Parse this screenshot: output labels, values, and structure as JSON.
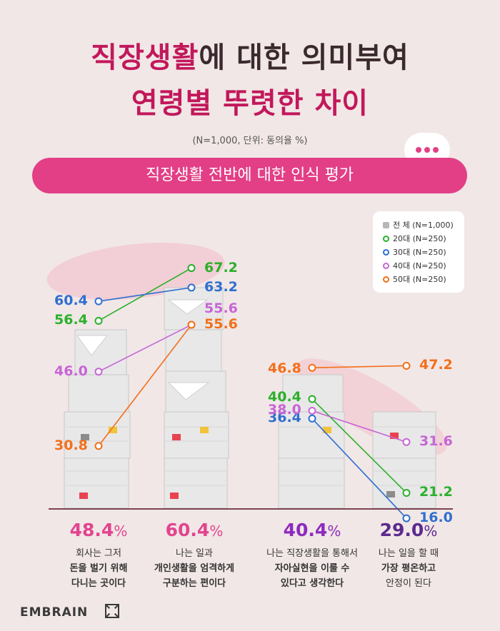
{
  "title": {
    "line1_highlight": "직장생활",
    "line1_rest": "에 대한 의미부여",
    "line2": "연령별 뚜렷한 차이"
  },
  "note": "(N=1,000, 단위: 동의율 %)",
  "banner": "직장생활 전반에 대한 인식 평가",
  "legend": [
    {
      "label": "전 체 (N=1,000)",
      "color": "#b7b7b7"
    },
    {
      "label": "20대 (N=250)",
      "color": "#2bb02b"
    },
    {
      "label": "30대 (N=250)",
      "color": "#2f6fd0"
    },
    {
      "label": "40대 (N=250)",
      "color": "#c865d6"
    },
    {
      "label": "50대 (N=250)",
      "color": "#f36f1a"
    }
  ],
  "chart_data": {
    "type": "line",
    "categories": [
      "회사는 그저 돈을 벌기 위해 다니는 곳이다",
      "나는 일과 개인생활을 엄격하게 구분하는 편이다",
      "나는 직장생활을 통해서 자아실현을 이룰 수 있다고 생각한다",
      "나는 일을 할 때 가장 평온하고 안정이 된다"
    ],
    "totals": [
      48.4,
      60.4,
      40.4,
      29.0
    ],
    "series": [
      {
        "name": "20대 (N=250)",
        "color": "#2bb02b",
        "values": [
          56.4,
          67.2,
          40.4,
          21.2
        ]
      },
      {
        "name": "30대 (N=250)",
        "color": "#2f6fd0",
        "values": [
          60.4,
          63.2,
          36.4,
          16.0
        ]
      },
      {
        "name": "40대 (N=250)",
        "color": "#c865d6",
        "values": [
          46.0,
          55.6,
          38.0,
          31.6
        ]
      },
      {
        "name": "50대 (N=250)",
        "color": "#f36f1a",
        "values": [
          30.8,
          55.6,
          46.8,
          47.2
        ]
      }
    ],
    "value_labels": [
      [
        "56.4",
        "67.2",
        "40.4",
        "21.2"
      ],
      [
        "60.4",
        "63.2",
        "36.4",
        "16.0"
      ],
      [
        "46.0",
        "55.6",
        "38.0",
        "31.6"
      ],
      [
        "30.8",
        "55.6",
        "46.8",
        "47.2"
      ]
    ]
  },
  "bottom": [
    {
      "pct": "48.4",
      "unit": "%",
      "color": "#e2448f",
      "lines": [
        "회사는 그저",
        "돈을 벌기 위해",
        "다니는 곳이다"
      ],
      "bold_lines": [
        1,
        2
      ]
    },
    {
      "pct": "60.4",
      "unit": "%",
      "color": "#e2448f",
      "lines": [
        "나는 일과",
        "개인생활을 엄격하게",
        "구분하는 편이다"
      ],
      "bold_lines": [
        1,
        2
      ]
    },
    {
      "pct": "40.4",
      "unit": "%",
      "color": "#8e2bbf",
      "lines": [
        "나는 직장생활을 통해서",
        "자아실현을 이룰 수",
        "있다고 생각한다"
      ],
      "bold_lines": [
        1,
        2
      ]
    },
    {
      "pct": "29.0",
      "unit": "%",
      "color": "#5b2a8e",
      "lines": [
        "나는 일을 할 때",
        "가장 평온하고",
        "안정이 된다"
      ],
      "bold_lines": [
        1
      ]
    }
  ],
  "brand": "EMBRAIN"
}
